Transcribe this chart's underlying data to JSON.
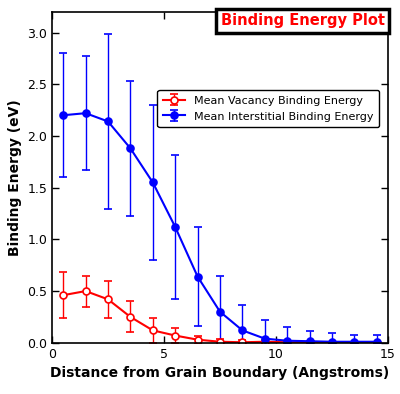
{
  "title": "Binding Energy Plot",
  "xlabel": "Distance from Grain Boundary (Angstroms)",
  "ylabel": "Binding Energy (eV)",
  "xlim": [
    0,
    15
  ],
  "ylim": [
    0,
    3.2
  ],
  "yticks": [
    0,
    0.5,
    1.0,
    1.5,
    2.0,
    2.5,
    3.0
  ],
  "xticks": [
    0,
    5,
    10,
    15
  ],
  "vacancy_x": [
    0.5,
    1.5,
    2.5,
    3.5,
    4.5,
    5.5,
    6.5,
    7.5,
    8.5,
    9.5,
    10.5,
    11.5,
    12.5,
    13.5,
    14.5
  ],
  "vacancy_y": [
    0.46,
    0.5,
    0.42,
    0.25,
    0.12,
    0.07,
    0.03,
    0.01,
    0.005,
    0.01,
    0.005,
    0.003,
    0.002,
    0.002,
    0.002
  ],
  "vacancy_yerr": [
    0.22,
    0.15,
    0.18,
    0.15,
    0.12,
    0.07,
    0.04,
    0.03,
    0.02,
    0.02,
    0.015,
    0.01,
    0.01,
    0.01,
    0.01
  ],
  "interstitial_x": [
    0.5,
    1.5,
    2.5,
    3.5,
    4.5,
    5.5,
    6.5,
    7.5,
    8.5,
    9.5,
    10.5,
    11.5,
    12.5,
    13.5,
    14.5
  ],
  "interstitial_y": [
    2.2,
    2.22,
    2.14,
    1.88,
    1.55,
    1.12,
    0.64,
    0.3,
    0.12,
    0.04,
    0.02,
    0.015,
    0.01,
    0.01,
    0.01
  ],
  "interstitial_yerr": [
    0.6,
    0.55,
    0.85,
    0.65,
    0.75,
    0.7,
    0.48,
    0.35,
    0.25,
    0.18,
    0.13,
    0.1,
    0.08,
    0.07,
    0.07
  ],
  "vacancy_color": "#FF0000",
  "interstitial_color": "#0000FF",
  "title_color": "#FF0000",
  "title_box_edge_color": "#000000",
  "background_color": "#FFFFFF",
  "legend_vacancy": "Mean Vacancy Binding Energy",
  "legend_interstitial": "Mean Interstitial Binding Energy",
  "axis_label_fontsize": 10,
  "tick_fontsize": 9,
  "legend_fontsize": 8,
  "title_fontsize": 10.5,
  "marker_size": 5,
  "line_width": 1.5,
  "cap_size": 3
}
